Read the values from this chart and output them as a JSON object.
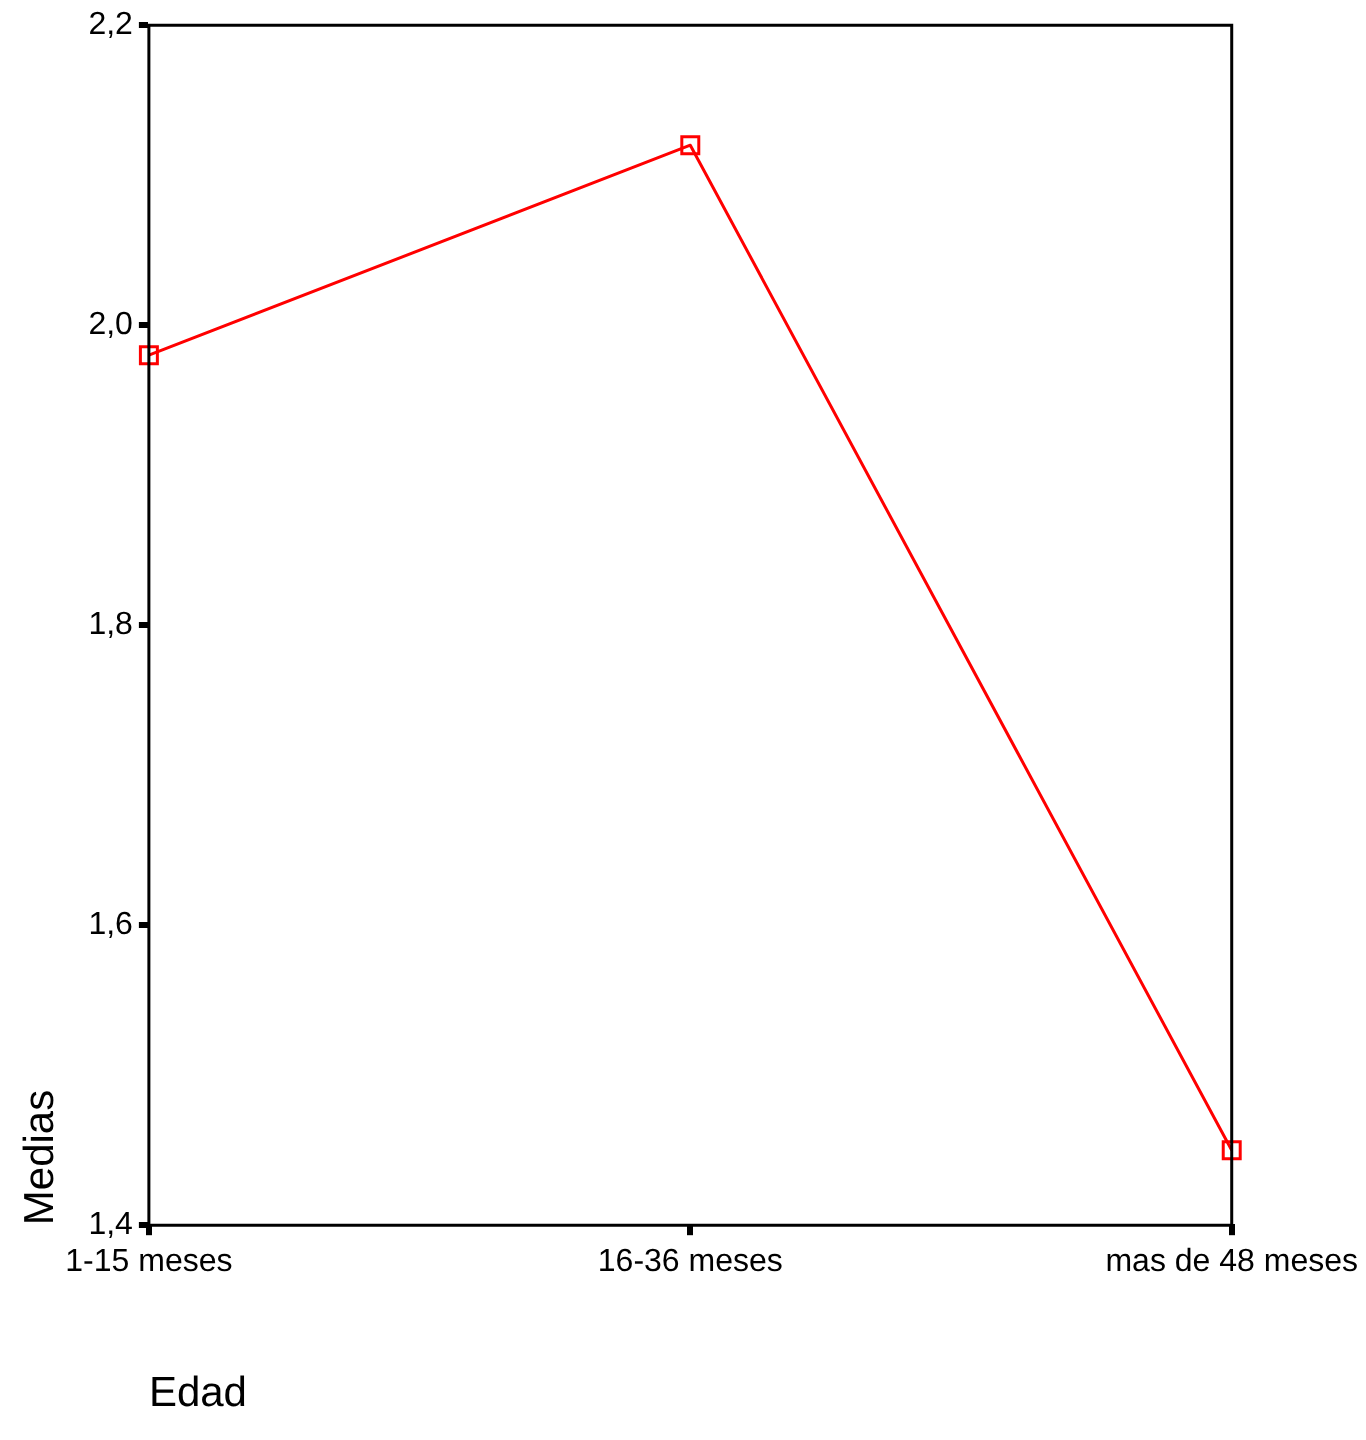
{
  "chart_data": {
    "type": "line",
    "xlabel": "Edad",
    "ylabel": "Medias",
    "categories": [
      "1-15 meses",
      "16-36 meses",
      "mas de 48 meses"
    ],
    "series": [
      {
        "color": "#ff0000",
        "values": [
          1.98,
          2.12,
          1.45
        ]
      }
    ],
    "ylim": [
      1.4,
      2.2
    ],
    "yticks": [
      {
        "value": 1.4,
        "label": "1,4"
      },
      {
        "value": 1.6,
        "label": "1,6"
      },
      {
        "value": 1.8,
        "label": "1,8"
      },
      {
        "value": 2.0,
        "label": "2,0"
      },
      {
        "value": 2.2,
        "label": "2,2"
      }
    ],
    "grid": false,
    "legend": false,
    "marker": "square",
    "line_style": "solid"
  }
}
